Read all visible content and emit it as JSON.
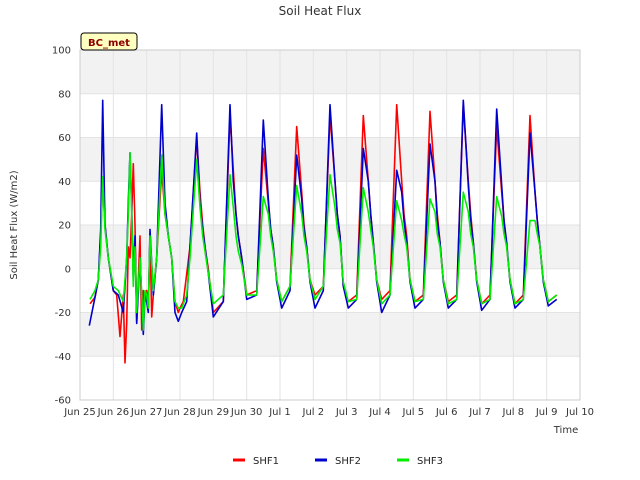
{
  "chart_data": {
    "type": "line",
    "title": "Soil Heat Flux",
    "xlabel": "Time",
    "ylabel": "Soil Heat Flux (W/m2)",
    "badge": "BC_met",
    "xlim": [
      0,
      15
    ],
    "ylim": [
      -60,
      100
    ],
    "yticks": [
      -60,
      -40,
      -20,
      0,
      20,
      40,
      60,
      80,
      100
    ],
    "xticks": [
      {
        "x": 0,
        "label": "Jun 25"
      },
      {
        "x": 1,
        "label": "Jun 26"
      },
      {
        "x": 2,
        "label": "Jun 27"
      },
      {
        "x": 3,
        "label": "Jun 28"
      },
      {
        "x": 4,
        "label": "Jun 29"
      },
      {
        "x": 5,
        "label": "Jun 30"
      },
      {
        "x": 6,
        "label": "Jul 1"
      },
      {
        "x": 7,
        "label": "Jul 2"
      },
      {
        "x": 8,
        "label": "Jul 3"
      },
      {
        "x": 9,
        "label": "Jul 4"
      },
      {
        "x": 10,
        "label": "Jul 5"
      },
      {
        "x": 11,
        "label": "Jul 6"
      },
      {
        "x": 12,
        "label": "Jul 7"
      },
      {
        "x": 13,
        "label": "Jul 8"
      },
      {
        "x": 14,
        "label": "Jul 9"
      },
      {
        "x": 15,
        "label": "Jul 10"
      }
    ],
    "grid": true,
    "legend_position": "bottom-center",
    "series": [
      {
        "name": "SHF1",
        "color": "#ff0000",
        "x": [
          0.3,
          0.45,
          0.55,
          0.62,
          0.68,
          0.75,
          0.85,
          1.0,
          1.1,
          1.2,
          1.3,
          1.35,
          1.4,
          1.45,
          1.5,
          1.55,
          1.6,
          1.65,
          1.7,
          1.8,
          1.85,
          1.9,
          1.95,
          2.0,
          2.05,
          2.1,
          2.15,
          2.2,
          2.3,
          2.45,
          2.55,
          2.65,
          2.75,
          2.85,
          2.95,
          3.0,
          3.1,
          3.3,
          3.5,
          3.6,
          3.68,
          3.75,
          3.85,
          4.0,
          4.3,
          4.5,
          4.6,
          4.68,
          4.75,
          4.85,
          5.0,
          5.3,
          5.5,
          5.65,
          5.72,
          5.8,
          5.9,
          6.05,
          6.3,
          6.5,
          6.65,
          6.72,
          6.8,
          6.9,
          7.05,
          7.3,
          7.5,
          7.65,
          7.72,
          7.8,
          7.9,
          8.05,
          8.3,
          8.5,
          8.65,
          8.72,
          8.8,
          8.9,
          9.05,
          9.3,
          9.5,
          9.65,
          9.72,
          9.8,
          9.9,
          10.05,
          10.3,
          10.5,
          10.65,
          10.72,
          10.8,
          10.9,
          11.05,
          11.3,
          11.5,
          11.65,
          11.72,
          11.8,
          11.9,
          12.05,
          12.3,
          12.5,
          12.65,
          12.72,
          12.8,
          12.9,
          13.05,
          13.3,
          13.5,
          13.65,
          13.72,
          13.8,
          13.9,
          14.05,
          14.3
        ],
        "values": [
          -16,
          -13,
          -5,
          15,
          40,
          20,
          5,
          -10,
          -12,
          -31,
          -12,
          -43,
          -25,
          10,
          5,
          25,
          48,
          20,
          -24,
          15,
          -28,
          -10,
          -15,
          -10,
          -18,
          15,
          -22,
          -12,
          5,
          45,
          25,
          15,
          5,
          -15,
          -20,
          -18,
          -15,
          10,
          60,
          35,
          20,
          10,
          0,
          -20,
          -15,
          70,
          45,
          25,
          15,
          5,
          -12,
          -10,
          55,
          30,
          18,
          10,
          -5,
          -15,
          -8,
          65,
          35,
          20,
          10,
          -5,
          -12,
          -8,
          70,
          40,
          25,
          15,
          -8,
          -15,
          -12,
          70,
          40,
          25,
          12,
          -5,
          -14,
          -10,
          75,
          40,
          25,
          15,
          -5,
          -15,
          -12,
          72,
          40,
          25,
          12,
          -5,
          -15,
          -12,
          75,
          40,
          25,
          12,
          -5,
          -16,
          -12,
          65,
          35,
          22,
          10,
          -5,
          -16,
          -12,
          70,
          35,
          22,
          10,
          -5,
          -15,
          -12
        ]
      },
      {
        "name": "SHF2",
        "color": "#0000cc",
        "x": [
          0.28,
          0.45,
          0.55,
          0.62,
          0.68,
          0.75,
          0.85,
          1.0,
          1.15,
          1.3,
          1.4,
          1.45,
          1.5,
          1.55,
          1.6,
          1.65,
          1.7,
          1.8,
          1.9,
          1.95,
          2.0,
          2.05,
          2.1,
          2.2,
          2.3,
          2.45,
          2.55,
          2.65,
          2.75,
          2.85,
          2.95,
          3.05,
          3.2,
          3.3,
          3.5,
          3.6,
          3.68,
          3.75,
          3.85,
          4.0,
          4.3,
          4.5,
          4.6,
          4.68,
          4.75,
          4.85,
          5.0,
          5.3,
          5.5,
          5.65,
          5.72,
          5.8,
          5.9,
          6.05,
          6.3,
          6.5,
          6.65,
          6.72,
          6.8,
          6.9,
          7.05,
          7.3,
          7.5,
          7.65,
          7.72,
          7.8,
          7.9,
          8.05,
          8.3,
          8.5,
          8.65,
          8.72,
          8.8,
          8.9,
          9.05,
          9.3,
          9.5,
          9.65,
          9.72,
          9.8,
          9.9,
          10.05,
          10.3,
          10.5,
          10.65,
          10.72,
          10.8,
          10.9,
          11.05,
          11.3,
          11.5,
          11.65,
          11.72,
          11.8,
          11.9,
          12.05,
          12.3,
          12.5,
          12.65,
          12.72,
          12.8,
          12.9,
          13.05,
          13.3,
          13.5,
          13.65,
          13.72,
          13.8,
          13.9,
          14.05,
          14.3
        ],
        "values": [
          -26,
          -13,
          -5,
          18,
          77,
          20,
          5,
          -10,
          -12,
          -20,
          5,
          30,
          53,
          28,
          -5,
          15,
          -25,
          5,
          -30,
          -12,
          -15,
          -20,
          18,
          -12,
          5,
          75,
          30,
          15,
          5,
          -20,
          -24,
          -20,
          -15,
          10,
          62,
          30,
          18,
          10,
          -2,
          -22,
          -15,
          75,
          40,
          25,
          15,
          5,
          -14,
          -12,
          68,
          32,
          18,
          10,
          -6,
          -18,
          -10,
          52,
          32,
          18,
          10,
          -6,
          -18,
          -10,
          75,
          40,
          25,
          15,
          -8,
          -18,
          -14,
          55,
          40,
          25,
          12,
          -6,
          -20,
          -12,
          45,
          35,
          22,
          12,
          -6,
          -18,
          -14,
          57,
          40,
          22,
          12,
          -6,
          -18,
          -14,
          77,
          38,
          22,
          12,
          -6,
          -19,
          -14,
          73,
          38,
          22,
          12,
          -6,
          -18,
          -14,
          62,
          35,
          22,
          10,
          -6,
          -17,
          -14
        ]
      },
      {
        "name": "SHF3",
        "color": "#00ee00",
        "x": [
          0.3,
          0.45,
          0.55,
          0.62,
          0.68,
          0.75,
          0.85,
          1.0,
          1.15,
          1.3,
          1.4,
          1.45,
          1.5,
          1.55,
          1.6,
          1.65,
          1.7,
          1.8,
          1.9,
          1.95,
          2.0,
          2.05,
          2.1,
          2.2,
          2.3,
          2.45,
          2.55,
          2.65,
          2.75,
          2.85,
          2.95,
          3.05,
          3.2,
          3.3,
          3.5,
          3.6,
          3.68,
          3.75,
          3.85,
          4.0,
          4.3,
          4.5,
          4.6,
          4.68,
          4.75,
          4.85,
          5.0,
          5.3,
          5.5,
          5.65,
          5.72,
          5.8,
          5.9,
          6.05,
          6.3,
          6.5,
          6.65,
          6.72,
          6.8,
          6.9,
          7.05,
          7.3,
          7.5,
          7.65,
          7.72,
          7.8,
          7.9,
          8.05,
          8.3,
          8.5,
          8.65,
          8.72,
          8.8,
          8.9,
          9.05,
          9.3,
          9.5,
          9.65,
          9.72,
          9.8,
          9.9,
          10.05,
          10.3,
          10.5,
          10.65,
          10.72,
          10.8,
          10.9,
          11.05,
          11.3,
          11.5,
          11.65,
          11.72,
          11.8,
          11.9,
          12.05,
          12.3,
          12.5,
          12.65,
          12.72,
          12.8,
          12.9,
          13.05,
          13.3,
          13.5,
          13.65,
          13.72,
          13.8,
          13.9,
          14.05,
          14.3
        ],
        "values": [
          -14,
          -10,
          -5,
          10,
          42,
          18,
          5,
          -8,
          -10,
          -15,
          5,
          25,
          53,
          25,
          -8,
          10,
          -20,
          5,
          -28,
          -10,
          -12,
          -18,
          15,
          -10,
          5,
          52,
          25,
          15,
          5,
          -15,
          -18,
          -18,
          -12,
          5,
          50,
          28,
          15,
          8,
          -2,
          -16,
          -12,
          43,
          28,
          15,
          8,
          2,
          -12,
          -12,
          33,
          25,
          15,
          8,
          -5,
          -15,
          -8,
          38,
          25,
          15,
          8,
          -5,
          -14,
          -8,
          43,
          28,
          18,
          12,
          -6,
          -15,
          -14,
          37,
          26,
          18,
          10,
          -5,
          -16,
          -12,
          31,
          22,
          16,
          10,
          -5,
          -15,
          -14,
          32,
          26,
          16,
          10,
          -5,
          -16,
          -14,
          35,
          26,
          16,
          10,
          -5,
          -16,
          -14,
          33,
          24,
          16,
          10,
          -5,
          -16,
          -14,
          22,
          22,
          16,
          10,
          -5,
          -15,
          -12
        ]
      }
    ]
  }
}
